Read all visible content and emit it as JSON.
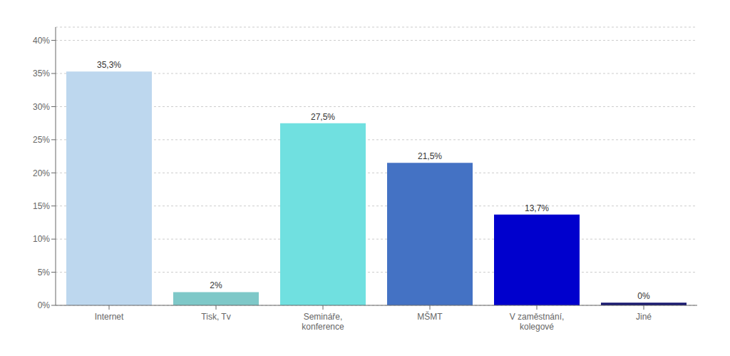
{
  "chart_data": {
    "type": "bar",
    "categories": [
      "Internet",
      "Tisk, Tv",
      "Semináře,\nkonference",
      "MŠMT",
      "V zaměstnání,\nkolegové",
      "Jiné"
    ],
    "values": [
      35.3,
      2.0,
      27.5,
      21.5,
      13.7,
      0.4
    ],
    "value_labels": [
      "35,3%",
      "2%",
      "27,5%",
      "21,5%",
      "13,7%",
      "0%"
    ],
    "data_labels": true,
    "colors": [
      "#bdd7ee",
      "#7ec8c8",
      "#70e0e0",
      "#4472c4",
      "#0000cd",
      "#191970"
    ],
    "ylim": [
      0,
      42
    ],
    "yticks": [
      {
        "value": 0,
        "label": "0%"
      },
      {
        "value": 5,
        "label": "5%"
      },
      {
        "value": 10,
        "label": "10%"
      },
      {
        "value": 15,
        "label": "15%"
      },
      {
        "value": 20,
        "label": "20%"
      },
      {
        "value": 25,
        "label": "25%"
      },
      {
        "value": 30,
        "label": "30%"
      },
      {
        "value": 35,
        "label": "35%"
      },
      {
        "value": 40,
        "label": "40%"
      }
    ],
    "grid": true
  }
}
